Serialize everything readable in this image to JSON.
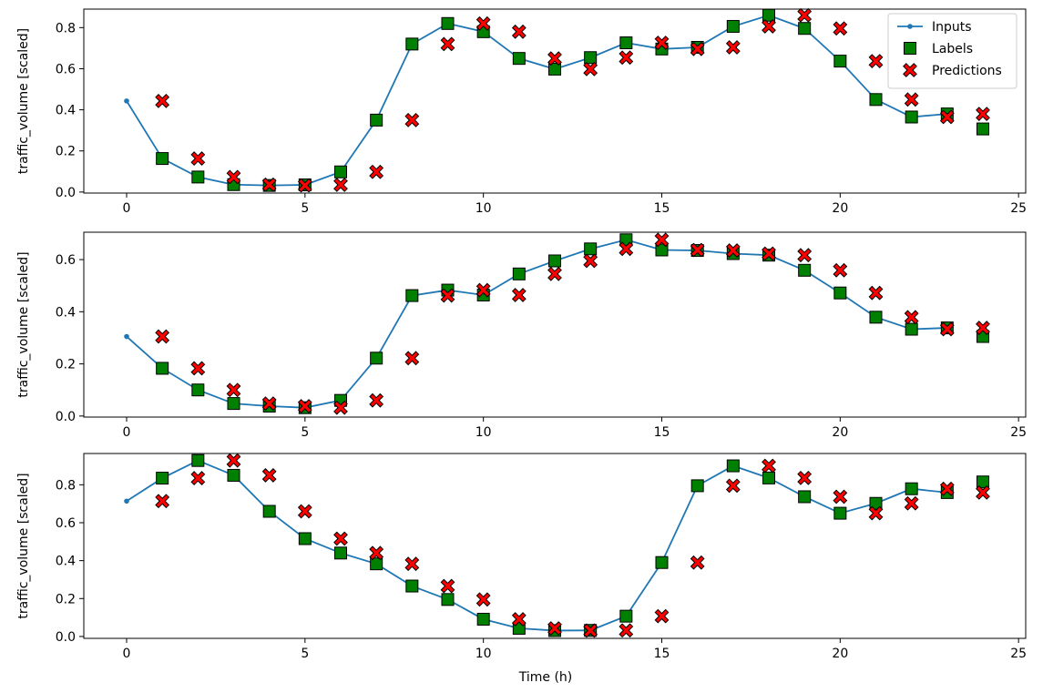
{
  "chart_data": {
    "type": "line",
    "legend": {
      "placement": "top-right",
      "entries": [
        "Inputs",
        "Labels",
        "Predictions"
      ]
    },
    "xlabel": "Time (h)",
    "colors": {
      "inputs": "#1f77b4",
      "labels": "#008000",
      "predictions": "#ff0000",
      "edge": "#000000"
    },
    "panels": [
      {
        "ylabel": "traffic_volume [scaled]",
        "xlim": [
          -1.2,
          25.2
        ],
        "ylim": [
          -0.005,
          0.89
        ],
        "xticks": [
          0,
          5,
          10,
          15,
          20,
          25
        ],
        "yticks": [
          "0.0",
          "0.2",
          "0.4",
          "0.6",
          "0.8"
        ],
        "series": [
          {
            "name": "Inputs",
            "x": [
              0,
              1,
              2,
              3,
              4,
              5,
              6,
              7,
              8,
              9,
              10,
              11,
              12,
              13,
              14,
              15,
              16,
              17,
              18,
              19,
              20,
              21,
              22,
              23
            ],
            "values": [
              0.443,
              0.163,
              0.073,
              0.036,
              0.032,
              0.035,
              0.098,
              0.35,
              0.72,
              0.82,
              0.78,
              0.65,
              0.598,
              0.654,
              0.726,
              0.696,
              0.704,
              0.806,
              0.86,
              0.796,
              0.637,
              0.45,
              0.365,
              0.38
            ]
          },
          {
            "name": "Labels",
            "x": [
              1,
              2,
              3,
              4,
              5,
              6,
              7,
              8,
              9,
              10,
              11,
              12,
              13,
              14,
              15,
              16,
              17,
              18,
              19,
              20,
              21,
              22,
              23,
              24
            ],
            "values": [
              0.163,
              0.073,
              0.036,
              0.032,
              0.035,
              0.098,
              0.35,
              0.72,
              0.82,
              0.78,
              0.65,
              0.598,
              0.654,
              0.726,
              0.696,
              0.704,
              0.806,
              0.86,
              0.796,
              0.637,
              0.45,
              0.365,
              0.38,
              0.307
            ]
          },
          {
            "name": "Predictions",
            "x": [
              1,
              2,
              3,
              4,
              5,
              6,
              7,
              8,
              9,
              10,
              11,
              12,
              13,
              14,
              15,
              16,
              17,
              18,
              19,
              20,
              21,
              22,
              23,
              24
            ],
            "values": [
              0.443,
              0.163,
              0.073,
              0.036,
              0.032,
              0.035,
              0.098,
              0.35,
              0.72,
              0.82,
              0.78,
              0.65,
              0.598,
              0.654,
              0.726,
              0.696,
              0.704,
              0.806,
              0.86,
              0.796,
              0.637,
              0.45,
              0.365,
              0.38
            ]
          }
        ]
      },
      {
        "ylabel": "traffic_volume [scaled]",
        "xlim": [
          -1.2,
          25.2
        ],
        "ylim": [
          -0.004,
          0.705
        ],
        "xticks": [
          0,
          5,
          10,
          15,
          20,
          25
        ],
        "yticks": [
          "0.0",
          "0.2",
          "0.4",
          "0.6"
        ],
        "series": [
          {
            "name": "Inputs",
            "x": [
              0,
              1,
              2,
              3,
              4,
              5,
              6,
              7,
              8,
              9,
              10,
              11,
              12,
              13,
              14,
              15,
              16,
              17,
              18,
              19,
              20,
              21,
              22,
              23
            ],
            "values": [
              0.305,
              0.183,
              0.1,
              0.048,
              0.038,
              0.032,
              0.06,
              0.222,
              0.462,
              0.483,
              0.464,
              0.545,
              0.595,
              0.641,
              0.676,
              0.637,
              0.635,
              0.623,
              0.617,
              0.559,
              0.472,
              0.379,
              0.333,
              0.338
            ]
          },
          {
            "name": "Labels",
            "x": [
              1,
              2,
              3,
              4,
              5,
              6,
              7,
              8,
              9,
              10,
              11,
              12,
              13,
              14,
              15,
              16,
              17,
              18,
              19,
              20,
              21,
              22,
              23,
              24
            ],
            "values": [
              0.183,
              0.1,
              0.048,
              0.038,
              0.032,
              0.06,
              0.222,
              0.462,
              0.483,
              0.464,
              0.545,
              0.595,
              0.641,
              0.676,
              0.637,
              0.635,
              0.623,
              0.617,
              0.559,
              0.472,
              0.379,
              0.333,
              0.338,
              0.305
            ]
          },
          {
            "name": "Predictions",
            "x": [
              1,
              2,
              3,
              4,
              5,
              6,
              7,
              8,
              9,
              10,
              11,
              12,
              13,
              14,
              15,
              16,
              17,
              18,
              19,
              20,
              21,
              22,
              23,
              24
            ],
            "values": [
              0.305,
              0.183,
              0.1,
              0.048,
              0.038,
              0.032,
              0.06,
              0.222,
              0.462,
              0.483,
              0.464,
              0.545,
              0.595,
              0.641,
              0.676,
              0.637,
              0.635,
              0.623,
              0.617,
              0.559,
              0.472,
              0.379,
              0.333,
              0.338
            ]
          }
        ]
      },
      {
        "ylabel": "traffic_volume [scaled]",
        "xlim": [
          -1.2,
          25.2
        ],
        "ylim": [
          -0.01,
          0.965
        ],
        "xticks": [
          0,
          5,
          10,
          15,
          20,
          25
        ],
        "yticks": [
          "0.0",
          "0.2",
          "0.4",
          "0.6",
          "0.8"
        ],
        "series": [
          {
            "name": "Inputs",
            "x": [
              0,
              1,
              2,
              3,
              4,
              5,
              6,
              7,
              8,
              9,
              10,
              11,
              12,
              13,
              14,
              15,
              16,
              17,
              18,
              19,
              20,
              21,
              22,
              23
            ],
            "values": [
              0.714,
              0.835,
              0.928,
              0.85,
              0.66,
              0.516,
              0.44,
              0.383,
              0.266,
              0.195,
              0.091,
              0.043,
              0.031,
              0.032,
              0.107,
              0.39,
              0.795,
              0.9,
              0.836,
              0.737,
              0.65,
              0.702,
              0.779,
              0.759
            ]
          },
          {
            "name": "Labels",
            "x": [
              1,
              2,
              3,
              4,
              5,
              6,
              7,
              8,
              9,
              10,
              11,
              12,
              13,
              14,
              15,
              16,
              17,
              18,
              19,
              20,
              21,
              22,
              23,
              24
            ],
            "values": [
              0.835,
              0.928,
              0.85,
              0.66,
              0.516,
              0.44,
              0.383,
              0.266,
              0.195,
              0.091,
              0.043,
              0.031,
              0.032,
              0.107,
              0.39,
              0.795,
              0.9,
              0.836,
              0.737,
              0.65,
              0.702,
              0.779,
              0.759,
              0.815
            ]
          },
          {
            "name": "Predictions",
            "x": [
              1,
              2,
              3,
              4,
              5,
              6,
              7,
              8,
              9,
              10,
              11,
              12,
              13,
              14,
              15,
              16,
              17,
              18,
              19,
              20,
              21,
              22,
              23,
              24
            ],
            "values": [
              0.714,
              0.835,
              0.928,
              0.85,
              0.66,
              0.516,
              0.44,
              0.383,
              0.266,
              0.195,
              0.091,
              0.043,
              0.031,
              0.032,
              0.107,
              0.39,
              0.795,
              0.9,
              0.836,
              0.737,
              0.65,
              0.702,
              0.779,
              0.759
            ]
          }
        ]
      }
    ]
  }
}
